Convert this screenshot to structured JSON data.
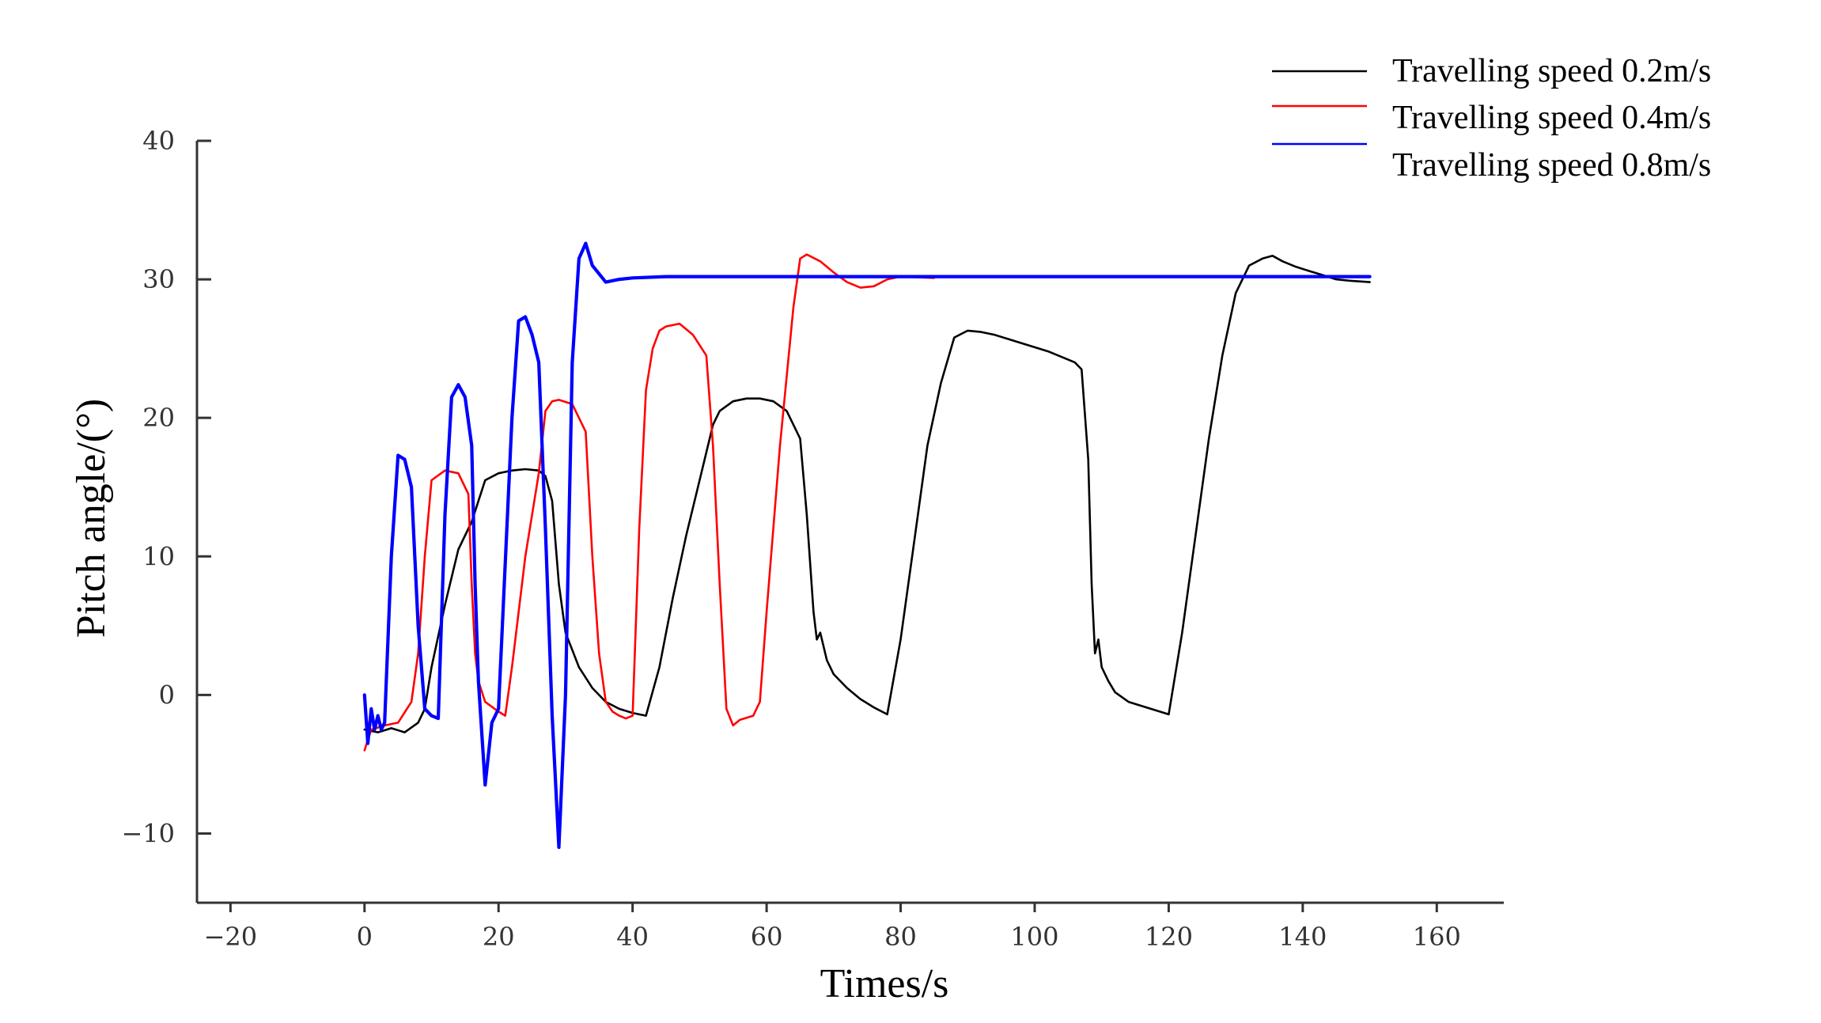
{
  "chart_data": {
    "type": "line",
    "title": "",
    "xlabel": "Times/s",
    "ylabel": "Pitch angle/(°)",
    "xlim": [
      -25,
      170
    ],
    "ylim": [
      -15,
      40
    ],
    "xticks": [
      -20,
      0,
      20,
      40,
      60,
      80,
      100,
      120,
      140,
      160
    ],
    "yticks": [
      -10,
      0,
      10,
      20,
      30,
      40
    ],
    "xtick_labels": [
      "−20",
      "0",
      "20",
      "40",
      "60",
      "80",
      "100",
      "120",
      "140",
      "160"
    ],
    "ytick_labels": [
      "−10",
      "0",
      "10",
      "20",
      "30",
      "40"
    ],
    "legend_position": "top-right",
    "series": [
      {
        "name": "Travelling speed 0.2m/s",
        "color": "#000000",
        "x": [
          0,
          2,
          4,
          6,
          8,
          9,
          10,
          12,
          14,
          16,
          17,
          18,
          20,
          22,
          24,
          26,
          27,
          28,
          29,
          30,
          32,
          34,
          36,
          38,
          40,
          42,
          44,
          46,
          48,
          50,
          52,
          53,
          55,
          57,
          59,
          61,
          63,
          65,
          66,
          67,
          67.5,
          68,
          69,
          70,
          72,
          74,
          76,
          78,
          80,
          82,
          84,
          86,
          88,
          90,
          92,
          94,
          96,
          98,
          100,
          102,
          104,
          106,
          107,
          108,
          108.5,
          109,
          109.5,
          110,
          111,
          112,
          114,
          116,
          118,
          120,
          122,
          124,
          126,
          128,
          130,
          132,
          134,
          135.5,
          137,
          139,
          141,
          143,
          145,
          147,
          150
        ],
        "y": [
          -2.5,
          -2.7,
          -2.4,
          -2.7,
          -2.0,
          -1.0,
          2.0,
          6.5,
          10.5,
          12.5,
          14.0,
          15.5,
          16.0,
          16.2,
          16.3,
          16.2,
          15.8,
          14.0,
          8.0,
          4.5,
          2.0,
          0.5,
          -0.5,
          -1.0,
          -1.3,
          -1.5,
          2.0,
          7.0,
          11.5,
          15.5,
          19.5,
          20.5,
          21.2,
          21.4,
          21.4,
          21.2,
          20.5,
          18.5,
          13.0,
          6.0,
          4.0,
          4.5,
          2.5,
          1.5,
          0.5,
          -0.3,
          -0.9,
          -1.4,
          4.0,
          11.0,
          18.0,
          22.5,
          25.8,
          26.3,
          26.2,
          26.0,
          25.7,
          25.4,
          25.1,
          24.8,
          24.4,
          24.0,
          23.5,
          17.0,
          8.0,
          3.0,
          4.0,
          2.0,
          1.0,
          0.2,
          -0.5,
          -0.8,
          -1.1,
          -1.4,
          4.5,
          11.5,
          18.5,
          24.5,
          29.0,
          31.0,
          31.5,
          31.7,
          31.3,
          30.9,
          30.6,
          30.3,
          30.0,
          29.9,
          29.8
        ]
      },
      {
        "name": "Travelling speed 0.4m/s",
        "color": "#ff0000",
        "x": [
          0,
          1,
          3,
          5,
          7,
          8,
          9,
          10,
          12,
          14,
          15.5,
          16,
          16.5,
          17,
          18,
          20,
          21,
          22,
          24,
          26,
          27,
          28,
          29,
          31,
          33,
          34,
          35,
          36,
          37,
          38,
          39,
          40,
          41,
          42,
          43,
          44,
          45,
          47,
          49,
          51,
          52,
          53,
          54,
          55,
          56,
          58,
          59,
          60,
          62,
          64,
          65,
          66,
          68,
          70,
          72,
          74,
          76,
          78,
          80,
          85
        ],
        "y": [
          -4.0,
          -2.5,
          -2.2,
          -2.0,
          -0.5,
          3.0,
          10.0,
          15.5,
          16.2,
          16.0,
          14.5,
          8.0,
          3.0,
          1.0,
          -0.5,
          -1.2,
          -1.5,
          2.0,
          10.0,
          16.0,
          20.5,
          21.2,
          21.3,
          21.0,
          19.0,
          10.0,
          3.0,
          -0.5,
          -1.2,
          -1.5,
          -1.7,
          -1.5,
          12.0,
          22.0,
          25.0,
          26.3,
          26.6,
          26.8,
          26.0,
          24.5,
          18.0,
          8.0,
          -1.0,
          -2.2,
          -1.8,
          -1.5,
          -0.5,
          6.0,
          18.0,
          28.0,
          31.5,
          31.8,
          31.3,
          30.5,
          29.8,
          29.4,
          29.5,
          30.0,
          30.2,
          30.1
        ]
      },
      {
        "name": "Travelling speed 0.8m/s",
        "color": "#0000ff",
        "x": [
          0,
          0.5,
          1,
          1.5,
          2,
          2.5,
          3,
          4,
          5,
          6,
          7,
          8,
          9,
          10,
          11,
          12,
          13,
          14,
          15,
          16,
          16.5,
          17,
          18,
          19,
          20,
          22,
          23,
          24,
          25,
          26,
          27,
          28,
          29,
          30,
          31,
          32,
          33,
          34,
          36,
          38,
          40,
          45,
          50,
          60,
          70,
          80,
          90,
          100,
          110,
          120,
          130,
          140,
          150
        ],
        "y": [
          0.0,
          -3.5,
          -1.0,
          -2.5,
          -1.5,
          -2.5,
          -2.0,
          10.0,
          17.3,
          17.0,
          15.0,
          5.0,
          -1.0,
          -1.5,
          -1.7,
          13.0,
          21.5,
          22.4,
          21.5,
          18.0,
          8.0,
          1.0,
          -6.5,
          -2.0,
          -1.0,
          20.0,
          27.0,
          27.3,
          26.0,
          24.0,
          12.0,
          -1.5,
          -11.0,
          0.0,
          24.0,
          31.5,
          32.6,
          31.0,
          29.8,
          30.0,
          30.1,
          30.2,
          30.2,
          30.2,
          30.2,
          30.2,
          30.2,
          30.2,
          30.2,
          30.2,
          30.2,
          30.2,
          30.2
        ]
      }
    ]
  }
}
